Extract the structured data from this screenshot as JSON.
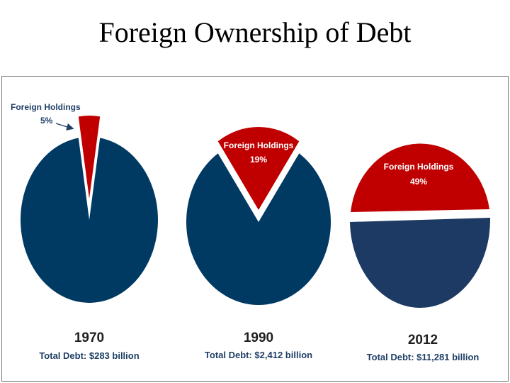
{
  "title": "Foreign Ownership of Debt",
  "colors": {
    "foreign": "#c00000",
    "domestic": "#003a63",
    "domestic_2012": "#1c3a63",
    "label_text": "#ffffff",
    "callout_text": "#1f3f66"
  },
  "chart_data": [
    {
      "type": "pie",
      "year": "1970",
      "total_label": "Total Debt: $283 billion",
      "slices": [
        {
          "name": "Foreign Holdings",
          "value": 5,
          "label": "5%"
        },
        {
          "name": "",
          "value": 95
        }
      ]
    },
    {
      "type": "pie",
      "year": "1990",
      "total_label": "Total Debt: $2,412 billion",
      "slices": [
        {
          "name": "Foreign Holdings",
          "value": 19,
          "label": "19%"
        },
        {
          "name": "",
          "value": 81
        }
      ]
    },
    {
      "type": "pie",
      "year": "2012",
      "total_label": "Total Debt: $11,281 billion",
      "slices": [
        {
          "name": "Foreign Holdings",
          "value": 49,
          "label": "49%"
        },
        {
          "name": "",
          "value": 51
        }
      ]
    }
  ]
}
